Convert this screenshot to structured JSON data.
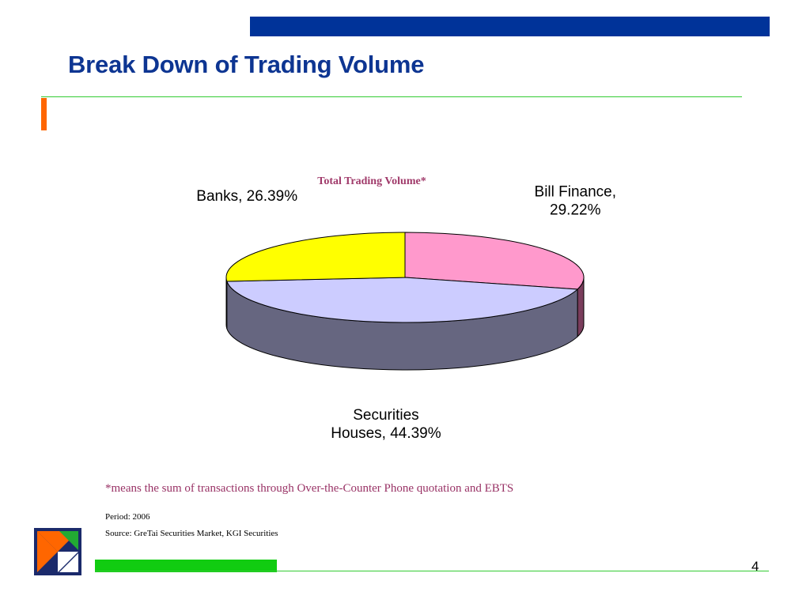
{
  "slide": {
    "title": "Break Down of Trading Volume",
    "footnote": "*means the sum of transactions through Over-the-Counter Phone quotation and EBTS",
    "period": "Period: 2006",
    "source": "Source: GreTai Securities Market, KGI Securities",
    "page_number": "4"
  },
  "colors": {
    "header_bar": "#003399",
    "title_text": "#0d3592",
    "accent_orange": "#ff6600",
    "accent_green": "#33cc33",
    "footnote_text": "#993366",
    "chart_title": "#a03a6a"
  },
  "chart_data": {
    "type": "pie",
    "style": "3d",
    "title": "Total Trading Volume*",
    "slices": [
      {
        "label_lines": [
          "Bill Finance,",
          "29.22%"
        ],
        "value": 29.22,
        "color": "#ff99cc",
        "side_color": "#7a3d5c"
      },
      {
        "label_lines": [
          "Securities",
          "Houses, 44.39%"
        ],
        "value": 44.39,
        "color": "#ccccff",
        "side_color": "#666680"
      },
      {
        "label_lines": [
          "Banks, 26.39%"
        ],
        "value": 26.39,
        "color": "#ffff00",
        "side_color": "#7a7a00"
      }
    ]
  }
}
